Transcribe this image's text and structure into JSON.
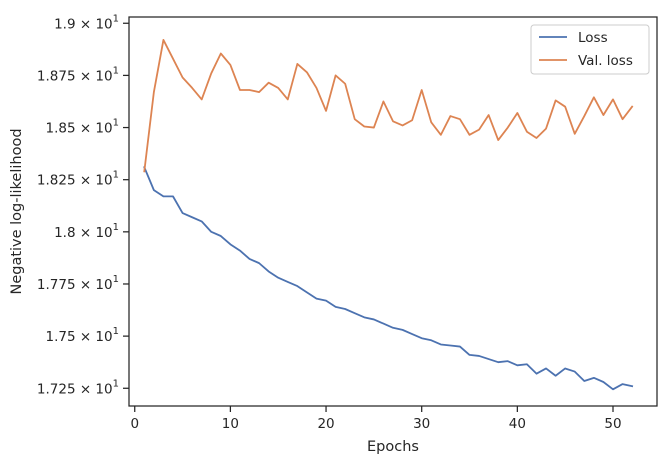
{
  "chart_data": {
    "type": "line",
    "xlabel": "Epochs",
    "ylabel": "Negative log-likelihood",
    "xlim": [
      -0.6,
      54.6
    ],
    "ylim": [
      17.165,
      19.03
    ],
    "xticks": [
      0,
      10,
      20,
      30,
      40,
      50
    ],
    "xtick_labels": [
      "0",
      "10",
      "20",
      "30",
      "40",
      "50"
    ],
    "yticks": [
      17.25,
      17.5,
      17.75,
      18.0,
      18.25,
      18.5,
      18.75,
      19.0
    ],
    "ytick_labels": [
      {
        "mantissa": "1.725",
        "sep": " × ",
        "base": "10",
        "exp": "1"
      },
      {
        "mantissa": "1.75",
        "sep": " × ",
        "base": "10",
        "exp": "1"
      },
      {
        "mantissa": "1.775",
        "sep": " × ",
        "base": "10",
        "exp": "1"
      },
      {
        "mantissa": "1.8",
        "sep": " × ",
        "base": "10",
        "exp": "1"
      },
      {
        "mantissa": "1.825",
        "sep": " × ",
        "base": "10",
        "exp": "1"
      },
      {
        "mantissa": "1.85",
        "sep": " × ",
        "base": "10",
        "exp": "1"
      },
      {
        "mantissa": "1.875",
        "sep": " × ",
        "base": "10",
        "exp": "1"
      },
      {
        "mantissa": "1.9",
        "sep": " × ",
        "base": "10",
        "exp": "1"
      }
    ],
    "grid": false,
    "legend_position": "top-right",
    "x": [
      1,
      2,
      3,
      4,
      5,
      6,
      7,
      8,
      9,
      10,
      11,
      12,
      13,
      14,
      15,
      16,
      17,
      18,
      19,
      20,
      21,
      22,
      23,
      24,
      25,
      26,
      27,
      28,
      29,
      30,
      31,
      32,
      33,
      34,
      35,
      36,
      37,
      38,
      39,
      40,
      41,
      42,
      43,
      44,
      45,
      46,
      47,
      48,
      49,
      50,
      51,
      52
    ],
    "series": [
      {
        "name": "Loss",
        "color": "#4c72b0",
        "values": [
          18.31,
          18.2,
          18.17,
          18.17,
          18.09,
          18.07,
          18.05,
          18.0,
          17.98,
          17.94,
          17.91,
          17.87,
          17.85,
          17.81,
          17.78,
          17.76,
          17.74,
          17.71,
          17.68,
          17.67,
          17.64,
          17.63,
          17.61,
          17.59,
          17.58,
          17.56,
          17.54,
          17.53,
          17.51,
          17.49,
          17.48,
          17.46,
          17.455,
          17.45,
          17.41,
          17.405,
          17.39,
          17.375,
          17.38,
          17.36,
          17.365,
          17.32,
          17.345,
          17.31,
          17.345,
          17.33,
          17.285,
          17.3,
          17.28,
          17.245,
          17.27,
          17.26
        ]
      },
      {
        "name": "Val. loss",
        "color": "#dd8452",
        "values": [
          18.29,
          18.67,
          18.92,
          18.83,
          18.74,
          18.69,
          18.635,
          18.76,
          18.855,
          18.8,
          18.68,
          18.68,
          18.67,
          18.715,
          18.69,
          18.635,
          18.805,
          18.765,
          18.69,
          18.58,
          18.75,
          18.71,
          18.54,
          18.505,
          18.5,
          18.625,
          18.53,
          18.51,
          18.535,
          18.68,
          18.525,
          18.465,
          18.555,
          18.54,
          18.465,
          18.49,
          18.56,
          18.44,
          18.5,
          18.57,
          18.48,
          18.45,
          18.495,
          18.63,
          18.6,
          18.47,
          18.555,
          18.645,
          18.56,
          18.635,
          18.54,
          18.6
        ]
      }
    ]
  }
}
